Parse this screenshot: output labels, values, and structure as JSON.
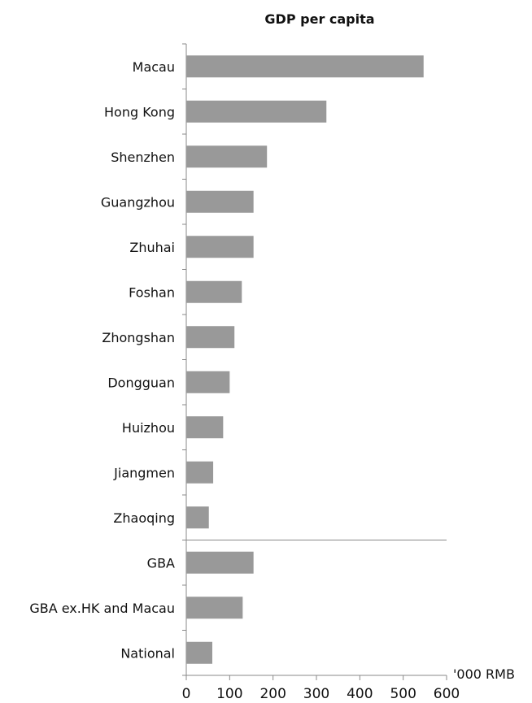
{
  "chart_data": {
    "type": "bar",
    "orientation": "horizontal",
    "title": "GDP per capita",
    "unit_label": "'000 RMB",
    "categories": [
      "Macau",
      "Hong Kong",
      "Shenzhen",
      "Guangzhou",
      "Zhuhai",
      "Foshan",
      "Zhongshan",
      "Dongguan",
      "Huizhou",
      "Jiangmen",
      "Zhaoqing",
      "GBA",
      "GBA ex.HK and Macau",
      "National"
    ],
    "values": [
      547,
      323,
      186,
      155,
      155,
      128,
      111,
      100,
      85,
      62,
      52,
      155,
      130,
      60
    ],
    "xlim": [
      0,
      600
    ],
    "xticks": [
      0,
      100,
      200,
      300,
      400,
      500,
      600
    ],
    "separator_after_index": 10,
    "grid": false,
    "bar_color": "#999999"
  }
}
